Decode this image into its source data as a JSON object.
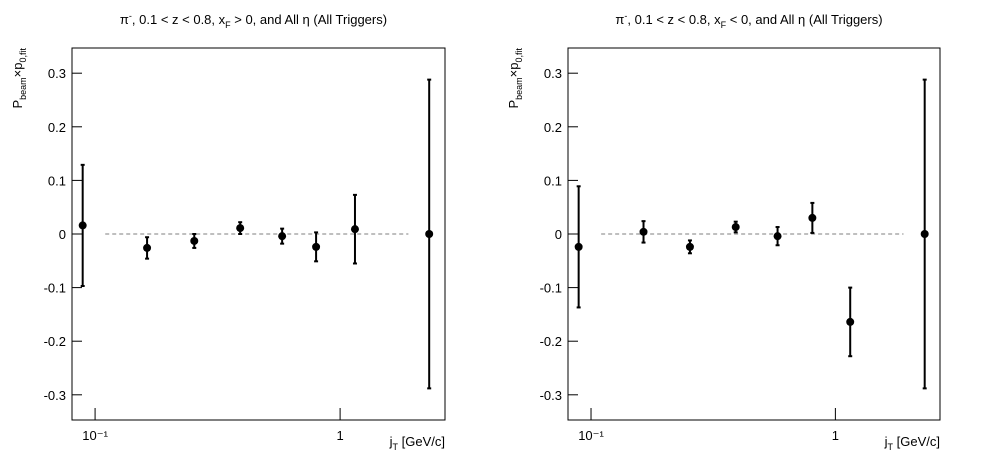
{
  "chart_data": [
    {
      "type": "scatter",
      "title": [
        "π",
        "-",
        ", 0.1 < z < 0.8, x",
        "F",
        " > 0, and All η (All Triggers)"
      ],
      "x_label": [
        "j",
        "T",
        " [GeV/c]"
      ],
      "y_label": [
        "P",
        "beam",
        "×p",
        "0,fit"
      ],
      "x": [
        0.089,
        0.163,
        0.254,
        0.391,
        0.58,
        0.798,
        1.15,
        2.31
      ],
      "values": [
        0.016,
        -0.026,
        -0.013,
        0.011,
        -0.004,
        -0.024,
        0.009,
        0
      ],
      "errors": [
        0.113,
        0.02,
        0.013,
        0.011,
        0.014,
        0.027,
        0.064,
        0.288
      ],
      "color": "#000000",
      "xlim": [
        0.0805,
        2.68
      ],
      "ylim": [
        -0.347,
        0.347
      ],
      "xscale": "log",
      "xticks": [
        {
          "value": 0.1,
          "label": "10⁻¹"
        },
        1
      ],
      "yticks": [
        -0.3,
        -0.2,
        -0.1,
        0,
        0.1,
        0.2,
        0.3
      ],
      "reference_line": {
        "y": 0,
        "x": [
          0.11,
          1.9
        ]
      }
    },
    {
      "type": "scatter",
      "title": [
        "π",
        "-",
        ", 0.1 < z < 0.8, x",
        "F",
        " < 0, and All η (All Triggers)"
      ],
      "x_label": [
        "j",
        "T",
        " [GeV/c]"
      ],
      "y_label": [
        "P",
        "beam",
        "×p",
        "0,fit"
      ],
      "x": [
        0.089,
        0.164,
        0.254,
        0.391,
        0.58,
        0.805,
        1.15,
        2.32
      ],
      "values": [
        -0.024,
        0.004,
        -0.024,
        0.013,
        -0.004,
        0.03,
        -0.164,
        0
      ],
      "errors": [
        0.113,
        0.02,
        0.012,
        0.01,
        0.017,
        0.028,
        0.064,
        0.288
      ],
      "color": "#000000",
      "xlim": [
        0.0805,
        2.68
      ],
      "ylim": [
        -0.347,
        0.347
      ],
      "xscale": "log",
      "xticks": [
        {
          "value": 0.1,
          "label": "10⁻¹"
        },
        1
      ],
      "yticks": [
        -0.3,
        -0.2,
        -0.1,
        0,
        0.1,
        0.2,
        0.3
      ],
      "reference_line": {
        "y": 0,
        "x": [
          0.11,
          1.9
        ]
      }
    }
  ]
}
